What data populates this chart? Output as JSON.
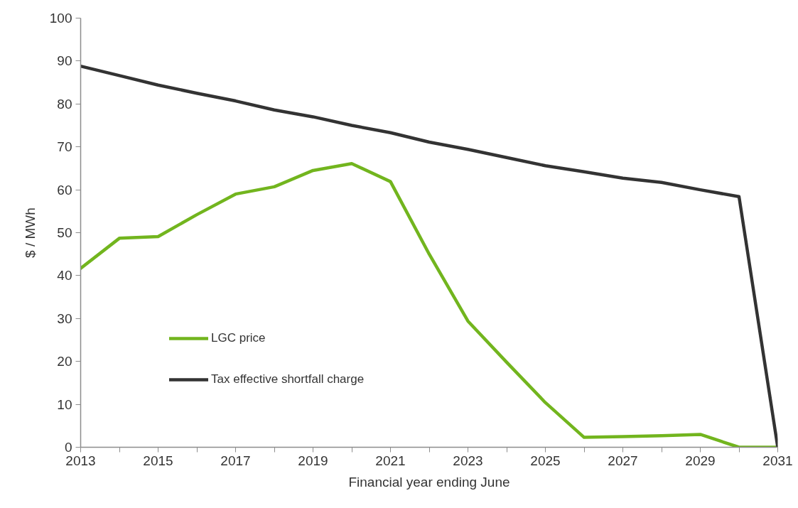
{
  "chart_data": {
    "type": "line",
    "xlabel": "Financial year ending June",
    "ylabel": "$ / MWh",
    "x": [
      2013,
      2014,
      2015,
      2016,
      2017,
      2018,
      2019,
      2020,
      2021,
      2022,
      2023,
      2024,
      2025,
      2026,
      2027,
      2028,
      2029,
      2030,
      2031
    ],
    "series": [
      {
        "name": "LGC price",
        "color": "#72b51e",
        "values": [
          41.7,
          48.7,
          49.1,
          54.2,
          59.0,
          60.7,
          64.5,
          66.1,
          61.9,
          45.0,
          29.4,
          19.8,
          10.4,
          2.3,
          2.5,
          2.7,
          3.0,
          0,
          0
        ]
      },
      {
        "name": "Tax effective shortfall charge",
        "color": "#333333",
        "values": [
          88.8,
          86.6,
          84.4,
          82.5,
          80.7,
          78.6,
          77.0,
          75.0,
          73.3,
          71.1,
          69.4,
          67.5,
          65.6,
          64.2,
          62.7,
          61.7,
          60.0,
          58.4,
          0
        ]
      }
    ],
    "xlim": [
      2013,
      2031
    ],
    "xticks": [
      2013,
      {
        "value": 2014,
        "label": null
      },
      2015,
      {
        "value": 2016,
        "label": null
      },
      2017,
      {
        "value": 2018,
        "label": null
      },
      2019,
      {
        "value": 2020,
        "label": null
      },
      2021,
      {
        "value": 2022,
        "label": null
      },
      2023,
      {
        "value": 2024,
        "label": null
      },
      2025,
      {
        "value": 2026,
        "label": null
      },
      2027,
      {
        "value": 2028,
        "label": null
      },
      2029,
      {
        "value": 2030,
        "label": null
      },
      2031
    ],
    "ylim": [
      0,
      100
    ],
    "yticks": [
      0,
      10,
      20,
      30,
      40,
      50,
      60,
      70,
      80,
      90,
      100
    ],
    "grid": false,
    "legend": "bottom left"
  }
}
